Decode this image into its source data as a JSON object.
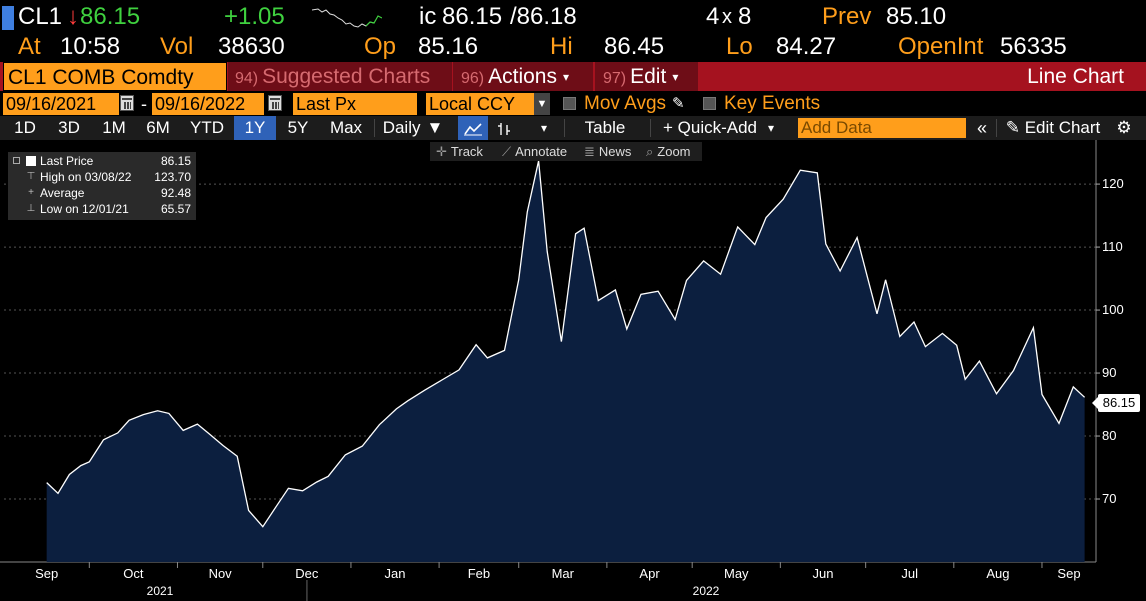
{
  "quote": {
    "ticker": "CL1",
    "last": "86.15",
    "change": "+1.05",
    "bid_ask_prefix": "ic",
    "bid": "86.15",
    "ask": "/86.18",
    "size_left": "4",
    "size_sep": "x",
    "size_right": "8",
    "prev_label": "Prev",
    "prev": "85.10",
    "at_label": "At",
    "time": "10:58",
    "vol_label": "Vol",
    "volume": "38630",
    "open_label": "Op",
    "open": "85.16",
    "high_label": "Hi",
    "high": "86.45",
    "low_label": "Lo",
    "low": "84.27",
    "oi_label": "OpenInt",
    "open_interest": "56335"
  },
  "menu": {
    "security": "CL1 COMB Comdty",
    "suggested_num": "94)",
    "suggested_label": "Suggested Charts",
    "actions_num": "96)",
    "actions_label": "Actions",
    "edit_num": "97)",
    "edit_label": "Edit",
    "chart_type": "Line Chart"
  },
  "inputs": {
    "start_date": "09/16/2021",
    "date_sep": "-",
    "end_date": "09/16/2022",
    "field": "Last Px",
    "currency": "Local CCY",
    "mov_avgs_label": "Mov Avgs",
    "key_events_label": "Key Events"
  },
  "toolbar": {
    "periods": [
      "1D",
      "3D",
      "1M",
      "6M",
      "YTD",
      "1Y",
      "5Y",
      "Max"
    ],
    "active_period": "1Y",
    "frequency": "Daily",
    "table_label": "Table",
    "quick_add_label": "+ Quick-Add",
    "add_data_placeholder": "Add Data",
    "edit_chart_label": "Edit Chart"
  },
  "chart_tools": {
    "track": "Track",
    "annotate": "Annotate",
    "news": "News",
    "zoom": "Zoom"
  },
  "legend": {
    "items": [
      {
        "label": "Last Price",
        "value": "86.15"
      },
      {
        "label": "High on 03/08/22",
        "value": "123.70"
      },
      {
        "label": "Average",
        "value": "92.48"
      },
      {
        "label": "Low on 12/01/21",
        "value": "65.57"
      }
    ]
  },
  "last_tag": "86.15",
  "colors": {
    "accent_orange": "#ff9e1b",
    "menu_red": "#a5121f",
    "positive_green": "#3fd13f",
    "area_fill": "#0c1f3f",
    "line": "#ffffff",
    "active_blue": "#2f62b8"
  },
  "chart_data": {
    "type": "area",
    "title": "",
    "xlabel": "",
    "ylabel": "",
    "ylim": [
      60,
      127
    ],
    "y_ticks": [
      70,
      80,
      90,
      100,
      110,
      120
    ],
    "grid": true,
    "legend_position": "top-left",
    "x_tick_labels": [
      "Sep",
      "Oct",
      "Nov",
      "Dec",
      "Jan",
      "Feb",
      "Mar",
      "Apr",
      "May",
      "Jun",
      "Jul",
      "Aug",
      "Sep"
    ],
    "x_year_labels": [
      "2021",
      "2022"
    ],
    "series": [
      {
        "name": "Last Price",
        "x": [
          "2021-09-16",
          "2021-09-20",
          "2021-09-24",
          "2021-09-28",
          "2021-10-01",
          "2021-10-06",
          "2021-10-11",
          "2021-10-15",
          "2021-10-20",
          "2021-10-25",
          "2021-10-29",
          "2021-11-03",
          "2021-11-08",
          "2021-11-12",
          "2021-11-17",
          "2021-11-22",
          "2021-11-26",
          "2021-12-01",
          "2021-12-06",
          "2021-12-10",
          "2021-12-15",
          "2021-12-20",
          "2021-12-24",
          "2021-12-30",
          "2022-01-05",
          "2022-01-11",
          "2022-01-17",
          "2022-01-21",
          "2022-01-27",
          "2022-02-02",
          "2022-02-08",
          "2022-02-14",
          "2022-02-18",
          "2022-02-24",
          "2022-03-01",
          "2022-03-04",
          "2022-03-08",
          "2022-03-11",
          "2022-03-16",
          "2022-03-21",
          "2022-03-24",
          "2022-03-29",
          "2022-04-04",
          "2022-04-08",
          "2022-04-13",
          "2022-04-19",
          "2022-04-25",
          "2022-04-29",
          "2022-05-05",
          "2022-05-11",
          "2022-05-17",
          "2022-05-23",
          "2022-05-27",
          "2022-06-02",
          "2022-06-08",
          "2022-06-14",
          "2022-06-17",
          "2022-06-22",
          "2022-06-28",
          "2022-07-05",
          "2022-07-08",
          "2022-07-13",
          "2022-07-18",
          "2022-07-22",
          "2022-07-28",
          "2022-08-02",
          "2022-08-05",
          "2022-08-10",
          "2022-08-16",
          "2022-08-22",
          "2022-08-29",
          "2022-09-01",
          "2022-09-07",
          "2022-09-12",
          "2022-09-16"
        ],
        "values": [
          72.6,
          70.9,
          73.9,
          75.3,
          75.9,
          79.4,
          80.5,
          82.5,
          83.4,
          84.0,
          83.6,
          80.9,
          81.9,
          80.4,
          78.5,
          76.8,
          68.2,
          65.6,
          69.0,
          71.7,
          71.3,
          72.7,
          73.6,
          77.0,
          78.4,
          81.8,
          84.3,
          85.6,
          87.3,
          88.9,
          90.5,
          94.5,
          92.4,
          93.6,
          104.8,
          115.6,
          123.7,
          109.3,
          95.0,
          112.1,
          113.0,
          101.5,
          103.2,
          97.0,
          102.5,
          103.0,
          98.5,
          104.7,
          107.8,
          105.7,
          113.2,
          110.4,
          114.7,
          117.6,
          122.2,
          121.8,
          110.5,
          106.2,
          111.5,
          99.4,
          104.8,
          95.8,
          98.1,
          94.2,
          96.3,
          94.4,
          89.0,
          91.9,
          86.7,
          90.4,
          97.2,
          86.6,
          82.0,
          87.8,
          86.15
        ]
      }
    ]
  }
}
